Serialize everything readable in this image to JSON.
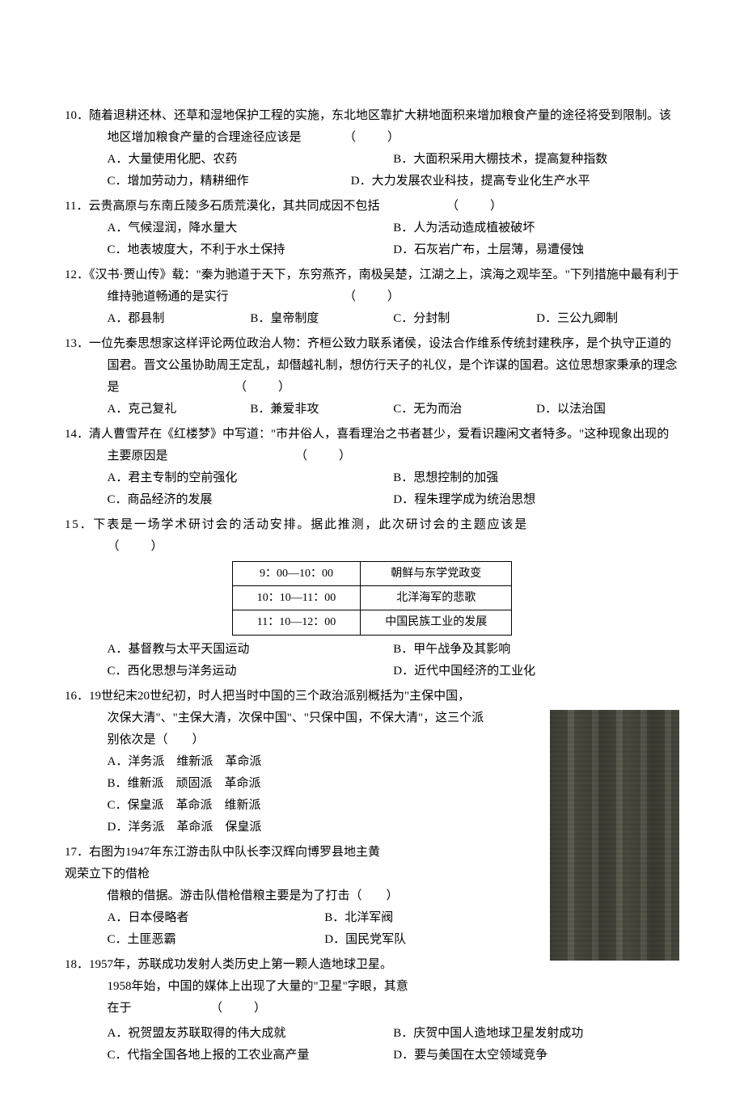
{
  "blank": "（　　）",
  "q10": {
    "num": "10．",
    "stem": "随着退耕还林、还草和湿地保护工程的实施，东北地区靠扩大耕地面积来增加粮食产量的途径将受到限制。该地区增加粮食产量的合理途径应该是",
    "opts": {
      "A": "A．大量使用化肥、农药",
      "B": "B．大面积采用大棚技术，提高复种指数",
      "C": "C．增加劳动力，精耕细作",
      "D": "D．大力发展农业科技，提高专业化生产水平"
    }
  },
  "q11": {
    "num": "11．",
    "stem": "云贵高原与东南丘陵多石质荒漠化，其共同成因不包括",
    "opts": {
      "A": "A．气候湿润，降水量大",
      "B": "B．人为活动造成植被破坏",
      "C": "C．地表坡度大，不利于水土保持",
      "D": "D．石灰岩广布，土层薄，易遭侵蚀"
    }
  },
  "q12": {
    "num": "12．",
    "stem": "《汉书·贾山传》载：\"秦为驰道于天下，东穷燕齐，南极吴楚，江湖之上，滨海之观毕至。\"下列措施中最有利于维持驰道畅通的是实行",
    "opts": {
      "A": "A．郡县制",
      "B": "B．皇帝制度",
      "C": "C．分封制",
      "D": "D．三公九卿制"
    }
  },
  "q13": {
    "num": "13．",
    "stem": "一位先秦思想家这样评论两位政治人物：齐桓公致力联系诸侯，设法合作维系传统封建秩序，是个执守正道的国君。晋文公虽协助周王定乱，却僭越礼制，想仿行天子的礼仪，是个诈谋的国君。这位思想家秉承的理念是",
    "opts": {
      "A": "A．克己复礼",
      "B": "B．兼爱非攻",
      "C": "C．无为而治",
      "D": "D．以法治国"
    }
  },
  "q14": {
    "num": "14．",
    "stem": "清人曹雪芹在《红楼梦》中写道：\"市井俗人，喜看理治之书者甚少，爱看识趣闲文者特多。\"这种现象出现的主要原因是",
    "opts": {
      "A": "A．君主专制的空前强化",
      "B": "B．思想控制的加强",
      "C": "C．商品经济的发展",
      "D": "D．程朱理学成为统治思想"
    }
  },
  "q15": {
    "num": "15．",
    "stem": "下表是一场学术研讨会的活动安排。据此推测，此次研讨会的主题应该是",
    "table": {
      "rows": [
        [
          "9：00—10：00",
          "朝鲜与东学党政变"
        ],
        [
          "10：10—11：00",
          "北洋海军的悲歌"
        ],
        [
          "11：10—12：00",
          "中国民族工业的发展"
        ]
      ]
    },
    "opts": {
      "A": "A．基督教与太平天国运动",
      "B": "B．甲午战争及其影响",
      "C": "C．西化思想与洋务运动",
      "D": "D．近代中国经济的工业化"
    }
  },
  "q16": {
    "num": "16．",
    "stem1": "19世纪末20世纪初，时人把当时中国的三个政治派别概括为\"主保中国，",
    "stem2": "次保大清\"、\"主保大清，次保中国\"、\"只保中国，不保大清\"，这三个派",
    "stem3": "别依次是（　　）",
    "opts": {
      "A": "A．洋务派　维新派　革命派",
      "B": "B．维新派　顽固派　革命派",
      "C": "C．保皇派　革命派　维新派",
      "D": "D．洋务派　革命派　保皇派"
    }
  },
  "q17": {
    "num": "17．",
    "stem1": "右图为1947年东江游击队中队长李汉辉向博罗县地主黄",
    "stem1b": "观荣立下的借枪",
    "stem2": "借粮的借据。游击队借枪借粮主要是为了打击（　　）",
    "opts": {
      "A": "A．日本侵略者",
      "B": "B．北洋军阀",
      "C": "C．土匪恶霸",
      "D": "D．国民党军队"
    }
  },
  "q18": {
    "num": "18．",
    "stem1": "1957年，苏联成功发射人类历史上第一颗人造地球卫星。",
    "stem2": "1958年始，中国的媒体上出现了大量的\"卫星\"字眼，其意",
    "stem3": "在于",
    "opts": {
      "A": "A．祝贺盟友苏联取得的伟大成就",
      "B": "B．庆贺中国人造地球卫星发射成功",
      "C": "C．代指全国各地上报的工农业高产量",
      "D": "D．要与美国在太空领域竞争"
    }
  }
}
